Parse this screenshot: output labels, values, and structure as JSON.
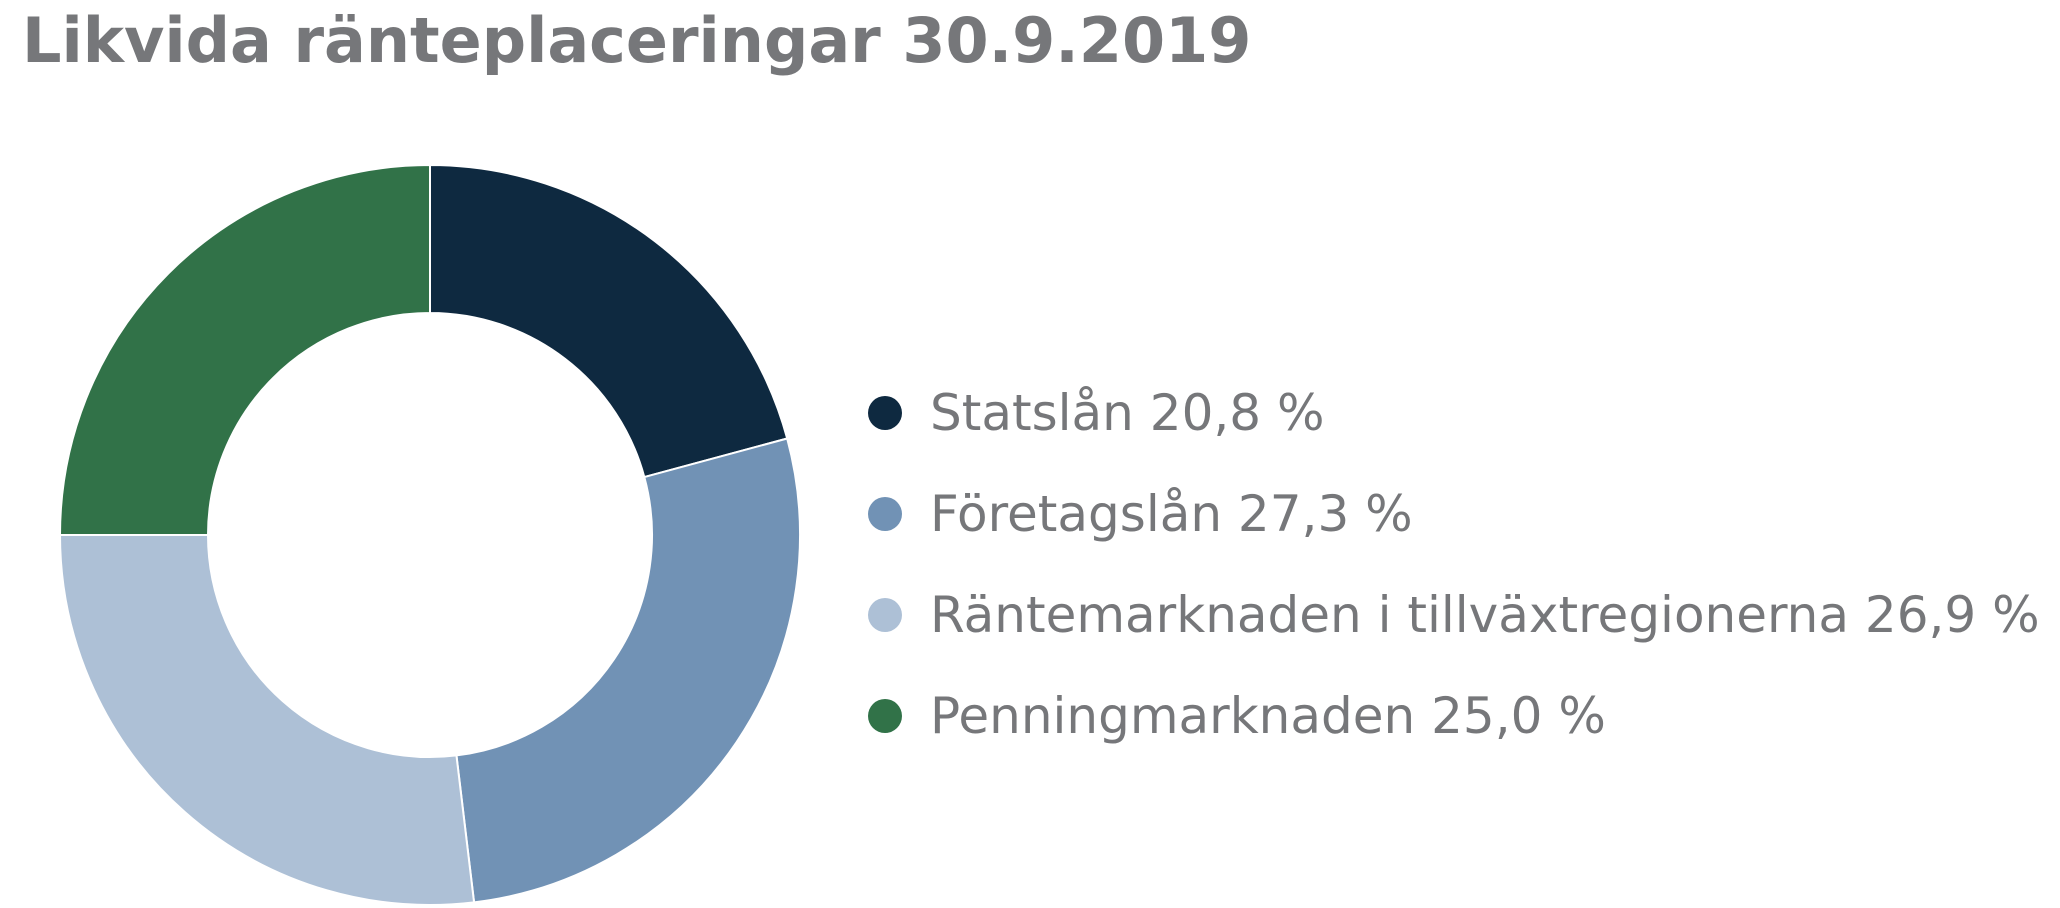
{
  "title": "Likvida ränteplaceringar 30.9.2019",
  "chart_data": {
    "type": "pie",
    "donut": true,
    "title": "Likvida ränteplaceringar 30.9.2019",
    "unit": "%",
    "legend_position": "right",
    "series": [
      {
        "name": "Statslån",
        "value": 20.8,
        "label": "Statslån 20,8 %",
        "color": "#0e2940"
      },
      {
        "name": "Företagslån",
        "value": 27.3,
        "label": "Företagslån 27,3 %",
        "color": "#7192b5"
      },
      {
        "name": "Räntemarknaden i tillväxtregionerna",
        "value": 26.9,
        "label": "Räntemarknaden i tillväxtregionerna 26,9 %",
        "color": "#adc0d6"
      },
      {
        "name": "Penningmarknaden",
        "value": 25.0,
        "label": "Penningmarknaden 25,0 %",
        "color": "#317248"
      }
    ]
  }
}
